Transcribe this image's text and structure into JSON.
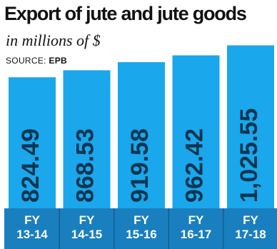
{
  "title": "Export of jute and jute goods",
  "subtitle": "in millions of $",
  "source": {
    "prefix": "SOURCE:",
    "name": "EPB"
  },
  "colors": {
    "bar": "#1aa7ec",
    "band": "#1a7fbf",
    "value_text": "#0c3550",
    "category_text": "#ffffff"
  },
  "chart_data": {
    "type": "bar",
    "title": "Export of jute and jute goods",
    "subtitle": "in millions of $",
    "xlabel": "",
    "ylabel": "",
    "categories": [
      [
        "FY",
        "13-14"
      ],
      [
        "FY",
        "14-15"
      ],
      [
        "FY",
        "15-16"
      ],
      [
        "FY",
        "16-17"
      ],
      [
        "FY",
        "17-18"
      ]
    ],
    "values": [
      824.49,
      868.53,
      919.58,
      962.42,
      1025.55
    ],
    "value_labels": [
      "824.49",
      "868.53",
      "919.58",
      "962.42",
      "1,025.55"
    ],
    "grid": false,
    "legend": "none"
  }
}
